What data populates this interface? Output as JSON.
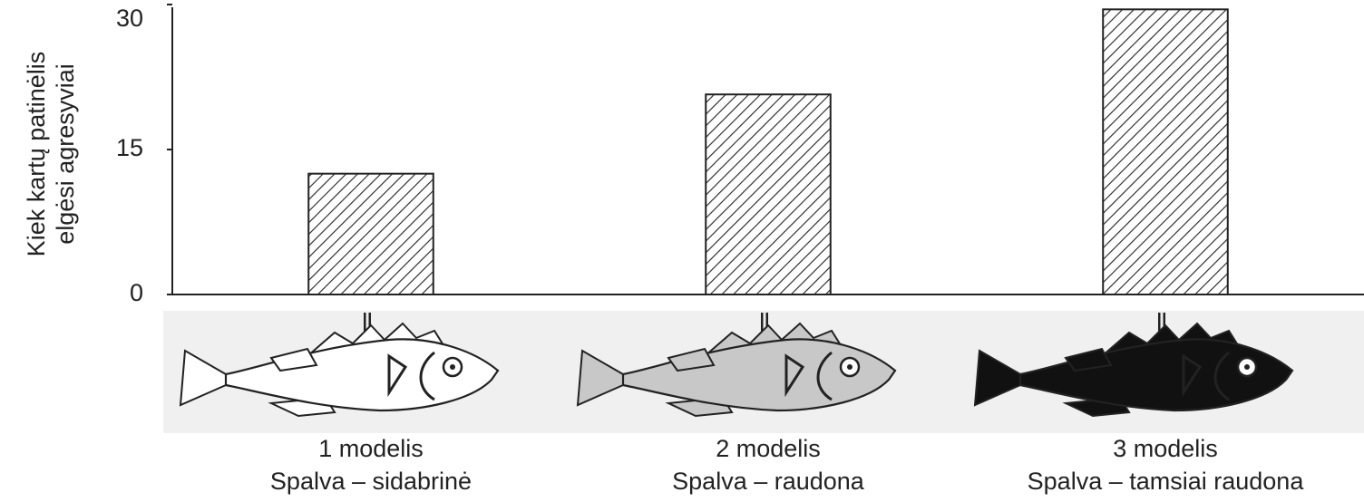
{
  "chart_data": {
    "type": "bar",
    "y_label": [
      "Kiek kartų patinėlis",
      "elgėsi agresyviai"
    ],
    "categories": [
      "1 modelis",
      "2 modelis",
      "3 modelis"
    ],
    "category_sublabels": [
      "Spalva – sidabrinė",
      "Spalva – raudona",
      "Spalva – tamsiai raudona"
    ],
    "values": [
      12.5,
      20.7,
      29.5
    ],
    "ylim": [
      0,
      30
    ],
    "yticks": [
      0,
      15,
      30
    ],
    "grid": false
  }
}
